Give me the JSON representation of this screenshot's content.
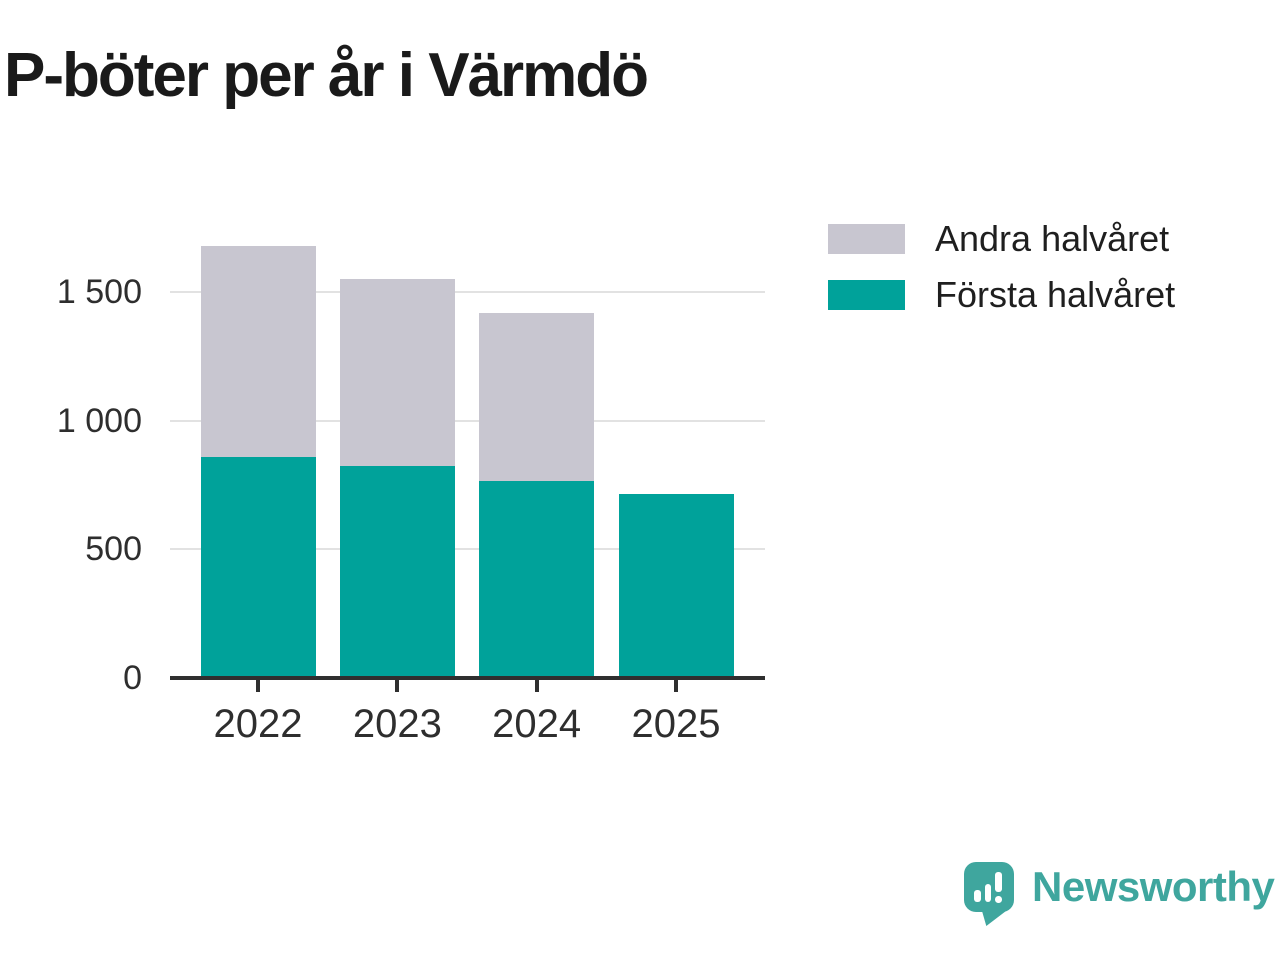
{
  "title": "P-böter per år i Värmdö",
  "legend": [
    {
      "label": "Andra halvåret",
      "color": "#c8c6d0"
    },
    {
      "label": "Första halvåret",
      "color": "#00a29a"
    }
  ],
  "chart_data": {
    "type": "bar",
    "stacked": true,
    "title": "P-böter per år i Värmdö",
    "categories": [
      "2022",
      "2023",
      "2024",
      "2025"
    ],
    "series": [
      {
        "name": "Första halvåret",
        "color": "#00a29a",
        "values": [
          860,
          825,
          765,
          715
        ]
      },
      {
        "name": "Andra halvåret",
        "color": "#c8c6d0",
        "values": [
          820,
          725,
          655,
          0
        ]
      }
    ],
    "totals": [
      1680,
      1550,
      1420,
      715
    ],
    "xlabel": "",
    "ylabel": "",
    "ylim": [
      0,
      1690
    ],
    "yticks": [
      {
        "value": 0,
        "label": "0"
      },
      {
        "value": 500,
        "label": "500"
      },
      {
        "value": 1000,
        "label": "1 000"
      },
      {
        "value": 1500,
        "label": "1 500"
      }
    ],
    "grid": "horizontal",
    "legend_position": "top-right"
  },
  "colors": {
    "first_half": "#00a29a",
    "second_half": "#c8c6d0",
    "gridline": "#e2e2e2",
    "axis": "#2f2f2f",
    "text": "#2e2e2e",
    "title_text": "#1a1a1a",
    "logo": "#3fa69e"
  },
  "logo": {
    "text": "Newsworthy"
  }
}
